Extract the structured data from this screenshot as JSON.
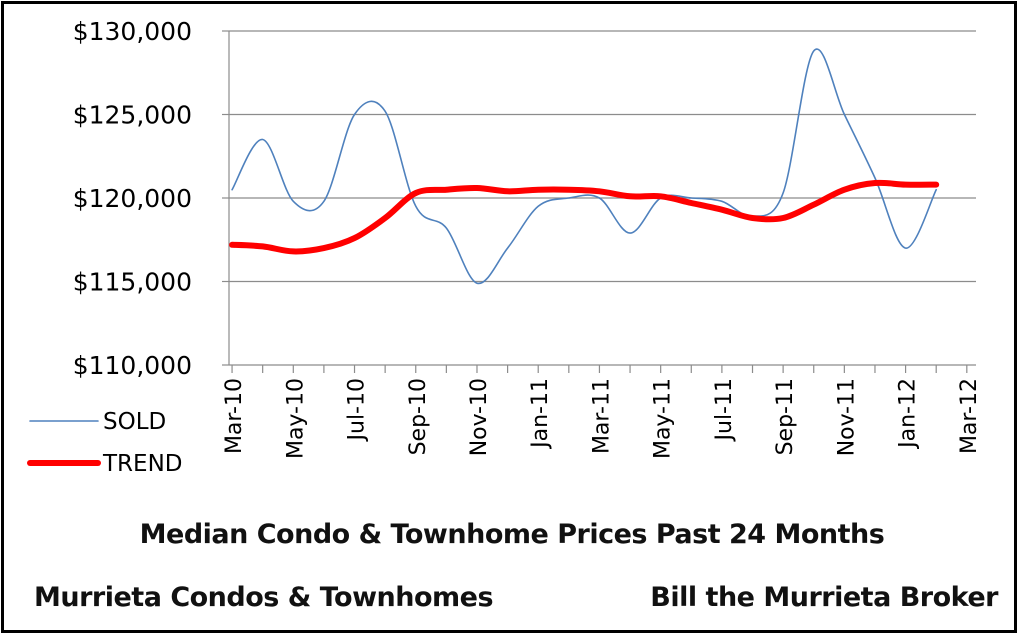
{
  "chart_data": {
    "type": "line",
    "title": "Median Condo & Townhome Prices Past 24 Months",
    "footer_left": "Murrieta  Condos & Townhomes",
    "footer_right": "Bill the Murrieta Broker",
    "categories": [
      "Mar-10",
      "Apr-10",
      "May-10",
      "Jun-10",
      "Jul-10",
      "Aug-10",
      "Sep-10",
      "Oct-10",
      "Nov-10",
      "Dec-10",
      "Jan-11",
      "Feb-11",
      "Mar-11",
      "Apr-11",
      "May-11",
      "Jun-11",
      "Jul-11",
      "Aug-11",
      "Sep-11",
      "Oct-11",
      "Nov-11",
      "Dec-11",
      "Jan-12",
      "Feb-12",
      "Mar-12"
    ],
    "tick_labels": [
      "Mar-10",
      "May-10",
      "Jul-10",
      "Sep-10",
      "Nov-10",
      "Jan-11",
      "Mar-11",
      "May-11",
      "Jul-11",
      "Sep-11",
      "Nov-11",
      "Jan-12",
      "Mar-12"
    ],
    "series": [
      {
        "name": "SOLD",
        "color": "#4f81bd",
        "values": [
          120500,
          123500,
          119800,
          119800,
          125000,
          125200,
          119500,
          118200,
          114900,
          117000,
          119500,
          120000,
          120000,
          117900,
          120000,
          120000,
          119800,
          118900,
          120300,
          128800,
          125000,
          121200,
          117000,
          120500,
          null
        ]
      },
      {
        "name": "TREND",
        "color": "#ff0000",
        "values": [
          117200,
          117100,
          116800,
          117000,
          117600,
          118800,
          120300,
          120500,
          120600,
          120400,
          120500,
          120500,
          120400,
          120100,
          120100,
          119700,
          119300,
          118800,
          118800,
          119600,
          120500,
          120900,
          120800,
          120800,
          null
        ]
      }
    ],
    "yticks": [
      "$130,000",
      "$125,000",
      "$120,000",
      "$115,000",
      "$110,000"
    ],
    "ylim": [
      110000,
      130000
    ],
    "legend": "left",
    "grid": "horizontal"
  }
}
